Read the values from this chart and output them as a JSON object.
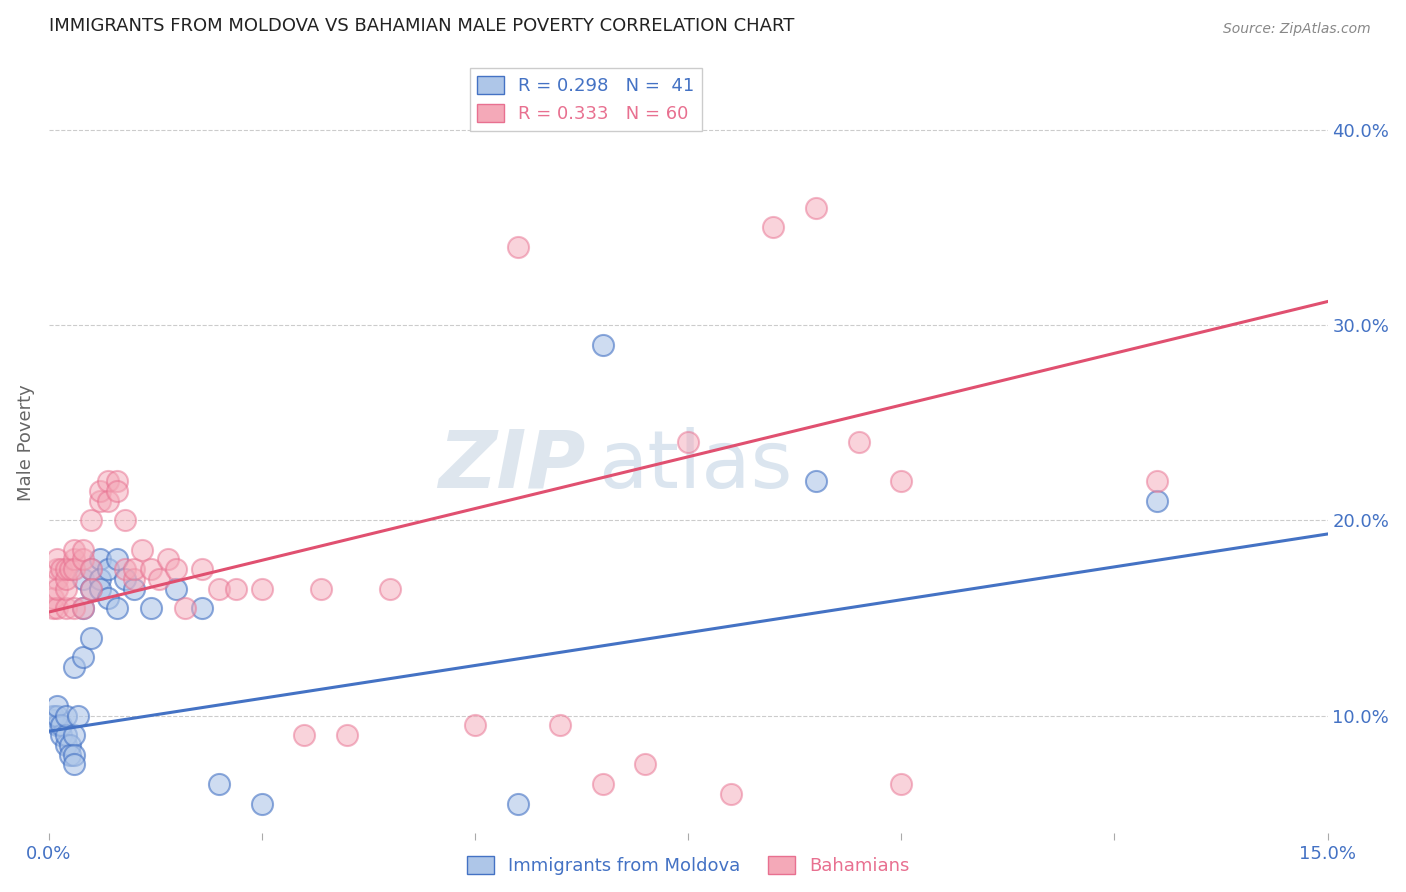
{
  "title": "IMMIGRANTS FROM MOLDOVA VS BAHAMIAN MALE POVERTY CORRELATION CHART",
  "source": "Source: ZipAtlas.com",
  "ylabel": "Male Poverty",
  "ytick_labels": [
    "10.0%",
    "20.0%",
    "30.0%",
    "40.0%"
  ],
  "ytick_values": [
    0.1,
    0.2,
    0.3,
    0.4
  ],
  "xlim": [
    0.0,
    0.15
  ],
  "ylim": [
    0.04,
    0.44
  ],
  "legend_r1": "R = 0.298",
  "legend_n1": "N =  41",
  "legend_r2": "R = 0.333",
  "legend_n2": "N = 60",
  "color_blue_fill": "#aec6e8",
  "color_pink_fill": "#f4a9b8",
  "color_blue_edge": "#4472c4",
  "color_pink_edge": "#e87090",
  "color_blue_line": "#4472c4",
  "color_pink_line": "#e05070",
  "watermark_zip": "ZIP",
  "watermark_atlas": "atlas",
  "label_blue": "Immigrants from Moldova",
  "label_pink": "Bahamians",
  "blue_line_y0": 0.092,
  "blue_line_y1": 0.193,
  "pink_line_y0": 0.153,
  "pink_line_y1": 0.312,
  "blue_x": [
    0.0005,
    0.0005,
    0.001,
    0.001,
    0.001,
    0.0015,
    0.0015,
    0.002,
    0.002,
    0.002,
    0.0025,
    0.0025,
    0.003,
    0.003,
    0.003,
    0.003,
    0.0035,
    0.004,
    0.004,
    0.004,
    0.005,
    0.005,
    0.005,
    0.006,
    0.006,
    0.006,
    0.007,
    0.007,
    0.008,
    0.008,
    0.009,
    0.01,
    0.012,
    0.015,
    0.018,
    0.02,
    0.025,
    0.055,
    0.065,
    0.09,
    0.13
  ],
  "blue_y": [
    0.098,
    0.1,
    0.095,
    0.1,
    0.105,
    0.09,
    0.095,
    0.085,
    0.09,
    0.1,
    0.085,
    0.08,
    0.125,
    0.09,
    0.08,
    0.075,
    0.1,
    0.13,
    0.155,
    0.17,
    0.175,
    0.165,
    0.14,
    0.18,
    0.17,
    0.165,
    0.175,
    0.16,
    0.155,
    0.18,
    0.17,
    0.165,
    0.155,
    0.165,
    0.155,
    0.065,
    0.055,
    0.055,
    0.29,
    0.22,
    0.21
  ],
  "pink_x": [
    0.0005,
    0.0005,
    0.001,
    0.001,
    0.001,
    0.001,
    0.001,
    0.0015,
    0.002,
    0.002,
    0.002,
    0.002,
    0.0025,
    0.003,
    0.003,
    0.003,
    0.003,
    0.004,
    0.004,
    0.004,
    0.005,
    0.005,
    0.005,
    0.006,
    0.006,
    0.007,
    0.007,
    0.008,
    0.008,
    0.009,
    0.009,
    0.01,
    0.01,
    0.011,
    0.012,
    0.013,
    0.014,
    0.015,
    0.016,
    0.018,
    0.02,
    0.022,
    0.025,
    0.03,
    0.032,
    0.035,
    0.04,
    0.05,
    0.055,
    0.06,
    0.065,
    0.07,
    0.075,
    0.08,
    0.085,
    0.09,
    0.095,
    0.1,
    0.1,
    0.13
  ],
  "pink_y": [
    0.155,
    0.16,
    0.17,
    0.175,
    0.18,
    0.155,
    0.165,
    0.175,
    0.155,
    0.165,
    0.17,
    0.175,
    0.175,
    0.18,
    0.185,
    0.155,
    0.175,
    0.18,
    0.185,
    0.155,
    0.175,
    0.165,
    0.2,
    0.21,
    0.215,
    0.22,
    0.21,
    0.22,
    0.215,
    0.2,
    0.175,
    0.17,
    0.175,
    0.185,
    0.175,
    0.17,
    0.18,
    0.175,
    0.155,
    0.175,
    0.165,
    0.165,
    0.165,
    0.09,
    0.165,
    0.09,
    0.165,
    0.095,
    0.34,
    0.095,
    0.065,
    0.075,
    0.24,
    0.06,
    0.35,
    0.36,
    0.24,
    0.22,
    0.065,
    0.22
  ]
}
